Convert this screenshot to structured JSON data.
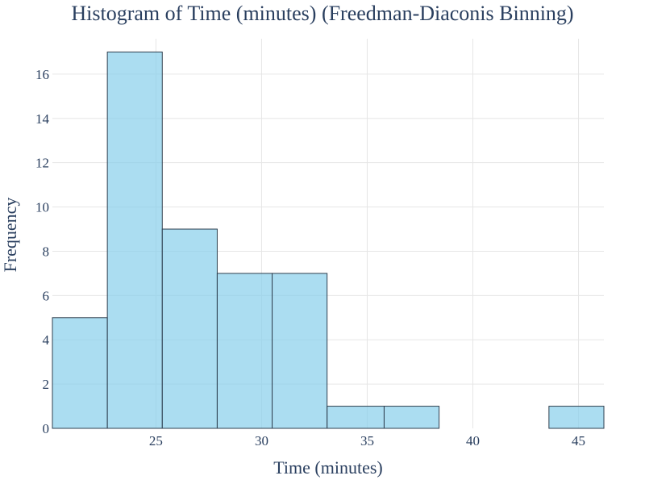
{
  "chart_data": {
    "type": "bar",
    "title": "Histogram of Time (minutes) (Freedman-Diaconis Binning)",
    "xlabel": "Time (minutes)",
    "ylabel": "Frequency",
    "xlim": [
      20.1,
      46.2
    ],
    "ylim": [
      0,
      17.6
    ],
    "xticks": [
      25,
      30,
      35,
      40,
      45
    ],
    "yticks": [
      0,
      2,
      4,
      6,
      8,
      10,
      12,
      14,
      16
    ],
    "bins": [
      {
        "x0": 20.1,
        "x1": 22.7,
        "count": 5
      },
      {
        "x0": 22.7,
        "x1": 25.3,
        "count": 17
      },
      {
        "x0": 25.3,
        "x1": 27.9,
        "count": 9
      },
      {
        "x0": 27.9,
        "x1": 30.5,
        "count": 7
      },
      {
        "x0": 30.5,
        "x1": 33.1,
        "count": 7
      },
      {
        "x0": 33.1,
        "x1": 35.8,
        "count": 1
      },
      {
        "x0": 35.8,
        "x1": 38.4,
        "count": 1
      },
      {
        "x0": 43.6,
        "x1": 46.2,
        "count": 1
      }
    ],
    "grid": true,
    "bar_color": "#87ceeb",
    "bar_edge_color": "#2f3f4f",
    "text_color": "#2a3f5f"
  }
}
